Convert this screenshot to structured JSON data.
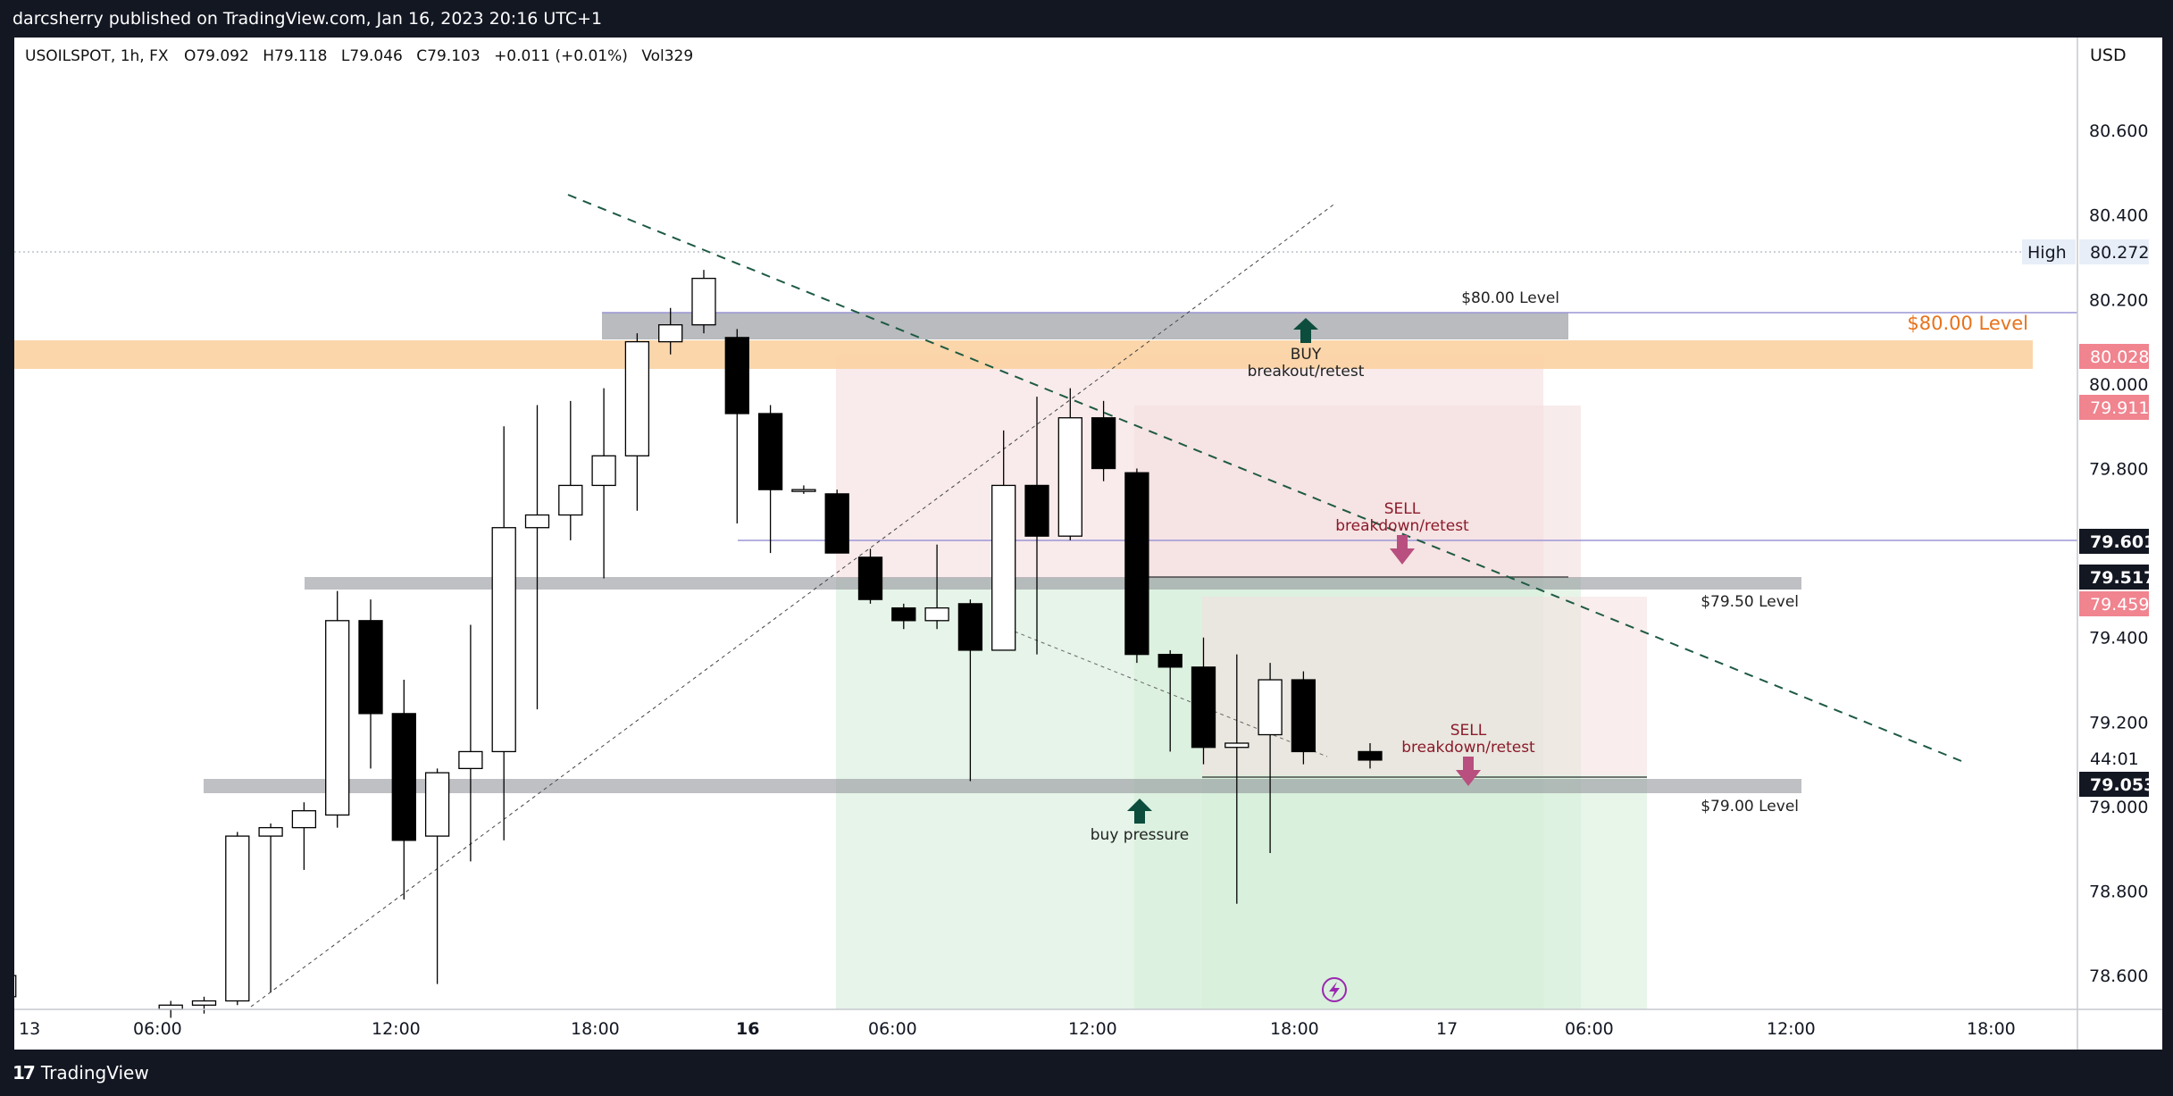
{
  "header": {
    "published": "darcsherry published on TradingView.com, Jan 16, 2023 20:16 UTC+1"
  },
  "footer": {
    "brand": "TradingView",
    "logo_glyph": "17"
  },
  "colors": {
    "frame": "#131722",
    "bg": "#ffffff",
    "candle_up": "#ffffff",
    "candle_down": "#000000",
    "grey_zone": "#8a8d93",
    "orange_zone": "#fbd2a2",
    "sell_arrow": "#b84f7f",
    "buy_arrow": "#0d4d3d",
    "short_zone": "#f6dede",
    "long_zone": "#d8efdc",
    "trend_dash": "#1e5a43",
    "orange_text": "#e8721b"
  },
  "chart_data": {
    "type": "candlestick",
    "symbol_line": {
      "symbol": "USOILSPOT, 1h, FX",
      "open": "O79.092",
      "high": "H79.118",
      "low": "L79.046",
      "close": "C79.103",
      "change": "+0.011 (+0.01%)",
      "volume": "Vol329"
    },
    "currency": "USD",
    "price_axis": {
      "ticks": [
        "80.600",
        "80.400",
        "80.200",
        "80.000",
        "79.800",
        "79.400",
        "79.200",
        "79.000",
        "78.800",
        "78.600"
      ],
      "range": [
        78.52,
        80.82
      ]
    },
    "time_axis": {
      "labels": [
        "13",
        "06:00",
        "12:00",
        "18:00",
        "16",
        "06:00",
        "12:00",
        "18:00",
        "17",
        "06:00",
        "12:00",
        "18:00"
      ]
    },
    "candles": [
      {
        "t": -1,
        "o": 78.55,
        "h": 78.67,
        "l": 78.5,
        "c": 78.6
      },
      {
        "t": 4,
        "o": 78.52,
        "h": 78.54,
        "l": 78.5,
        "c": 78.53
      },
      {
        "t": 5,
        "o": 78.53,
        "h": 78.55,
        "l": 78.51,
        "c": 78.54
      },
      {
        "t": 6,
        "o": 78.54,
        "h": 78.94,
        "l": 78.53,
        "c": 78.93
      },
      {
        "t": 7,
        "o": 78.93,
        "h": 78.96,
        "l": 78.56,
        "c": 78.95
      },
      {
        "t": 8,
        "o": 78.95,
        "h": 79.01,
        "l": 78.85,
        "c": 78.99
      },
      {
        "t": 9,
        "o": 78.98,
        "h": 79.51,
        "l": 78.95,
        "c": 79.44
      },
      {
        "t": 10,
        "o": 79.44,
        "h": 79.49,
        "l": 79.09,
        "c": 79.22
      },
      {
        "t": 11,
        "o": 79.22,
        "h": 79.3,
        "l": 78.78,
        "c": 78.92
      },
      {
        "t": 12,
        "o": 78.93,
        "h": 79.09,
        "l": 78.58,
        "c": 79.08
      },
      {
        "t": 13,
        "o": 79.09,
        "h": 79.43,
        "l": 78.87,
        "c": 79.13
      },
      {
        "t": 14,
        "o": 79.13,
        "h": 79.9,
        "l": 78.92,
        "c": 79.66
      },
      {
        "t": 15,
        "o": 79.66,
        "h": 79.95,
        "l": 79.23,
        "c": 79.69
      },
      {
        "t": 16,
        "o": 79.69,
        "h": 79.96,
        "l": 79.63,
        "c": 79.76
      },
      {
        "t": 17,
        "o": 79.76,
        "h": 79.99,
        "l": 79.54,
        "c": 79.83
      },
      {
        "t": 18,
        "o": 79.83,
        "h": 80.12,
        "l": 79.7,
        "c": 80.1
      },
      {
        "t": 19,
        "o": 80.1,
        "h": 80.18,
        "l": 80.07,
        "c": 80.14
      },
      {
        "t": 20,
        "o": 80.14,
        "h": 80.27,
        "l": 80.12,
        "c": 80.25
      },
      {
        "t": 21,
        "o": 80.11,
        "h": 80.13,
        "l": 79.67,
        "c": 79.93
      },
      {
        "t": 22,
        "o": 79.93,
        "h": 79.95,
        "l": 79.6,
        "c": 79.75
      },
      {
        "t": 23,
        "o": 79.75,
        "h": 79.76,
        "l": 79.74,
        "c": 79.75
      },
      {
        "t": 24,
        "o": 79.74,
        "h": 79.75,
        "l": 79.61,
        "c": 79.6
      },
      {
        "t": 25,
        "o": 79.59,
        "h": 79.61,
        "l": 79.48,
        "c": 79.49
      },
      {
        "t": 26,
        "o": 79.47,
        "h": 79.48,
        "l": 79.42,
        "c": 79.44
      },
      {
        "t": 27,
        "o": 79.44,
        "h": 79.62,
        "l": 79.42,
        "c": 79.47
      },
      {
        "t": 28,
        "o": 79.48,
        "h": 79.49,
        "l": 79.06,
        "c": 79.37
      },
      {
        "t": 29,
        "o": 79.37,
        "h": 79.89,
        "l": 79.37,
        "c": 79.76
      },
      {
        "t": 30,
        "o": 79.76,
        "h": 79.97,
        "l": 79.36,
        "c": 79.64
      },
      {
        "t": 31,
        "o": 79.64,
        "h": 79.99,
        "l": 79.63,
        "c": 79.92
      },
      {
        "t": 32,
        "o": 79.92,
        "h": 79.96,
        "l": 79.77,
        "c": 79.8
      },
      {
        "t": 33,
        "o": 79.79,
        "h": 79.8,
        "l": 79.34,
        "c": 79.36
      },
      {
        "t": 34,
        "o": 79.36,
        "h": 79.37,
        "l": 79.13,
        "c": 79.33
      },
      {
        "t": 35,
        "o": 79.33,
        "h": 79.4,
        "l": 79.1,
        "c": 79.14
      },
      {
        "t": 36,
        "o": 79.14,
        "h": 79.36,
        "l": 78.77,
        "c": 79.15
      },
      {
        "t": 37,
        "o": 79.17,
        "h": 79.34,
        "l": 78.89,
        "c": 79.3
      },
      {
        "t": 38,
        "o": 79.3,
        "h": 79.32,
        "l": 79.1,
        "c": 79.13
      },
      {
        "t": 40,
        "o": 79.13,
        "h": 79.15,
        "l": 79.09,
        "c": 79.11
      }
    ],
    "price_tags": [
      {
        "value": "80.272",
        "label": "High",
        "style": "high"
      },
      {
        "value": "80.028",
        "style": "pink"
      },
      {
        "value": "79.911",
        "style": "pink"
      },
      {
        "value": "79.601",
        "style": "dark"
      },
      {
        "value": "79.517",
        "style": "dark"
      },
      {
        "value": "79.459",
        "style": "pink"
      },
      {
        "value": "44:01",
        "style": "timer"
      },
      {
        "value": "79.053",
        "style": "dark"
      }
    ],
    "annotations": {
      "level_80_small": "$80.00 Level",
      "level_80_orange": "$80.00 Level",
      "level_7950": "$79.50 Level",
      "level_79": "$79.00 Level",
      "buy": "BUY",
      "buy_sub": "breakout/retest",
      "sell1": "SELL",
      "sell1_sub": "breakdown/retest",
      "sell2": "SELL",
      "sell2_sub": "breakdown/retest",
      "buy_pressure": "buy pressure"
    }
  }
}
